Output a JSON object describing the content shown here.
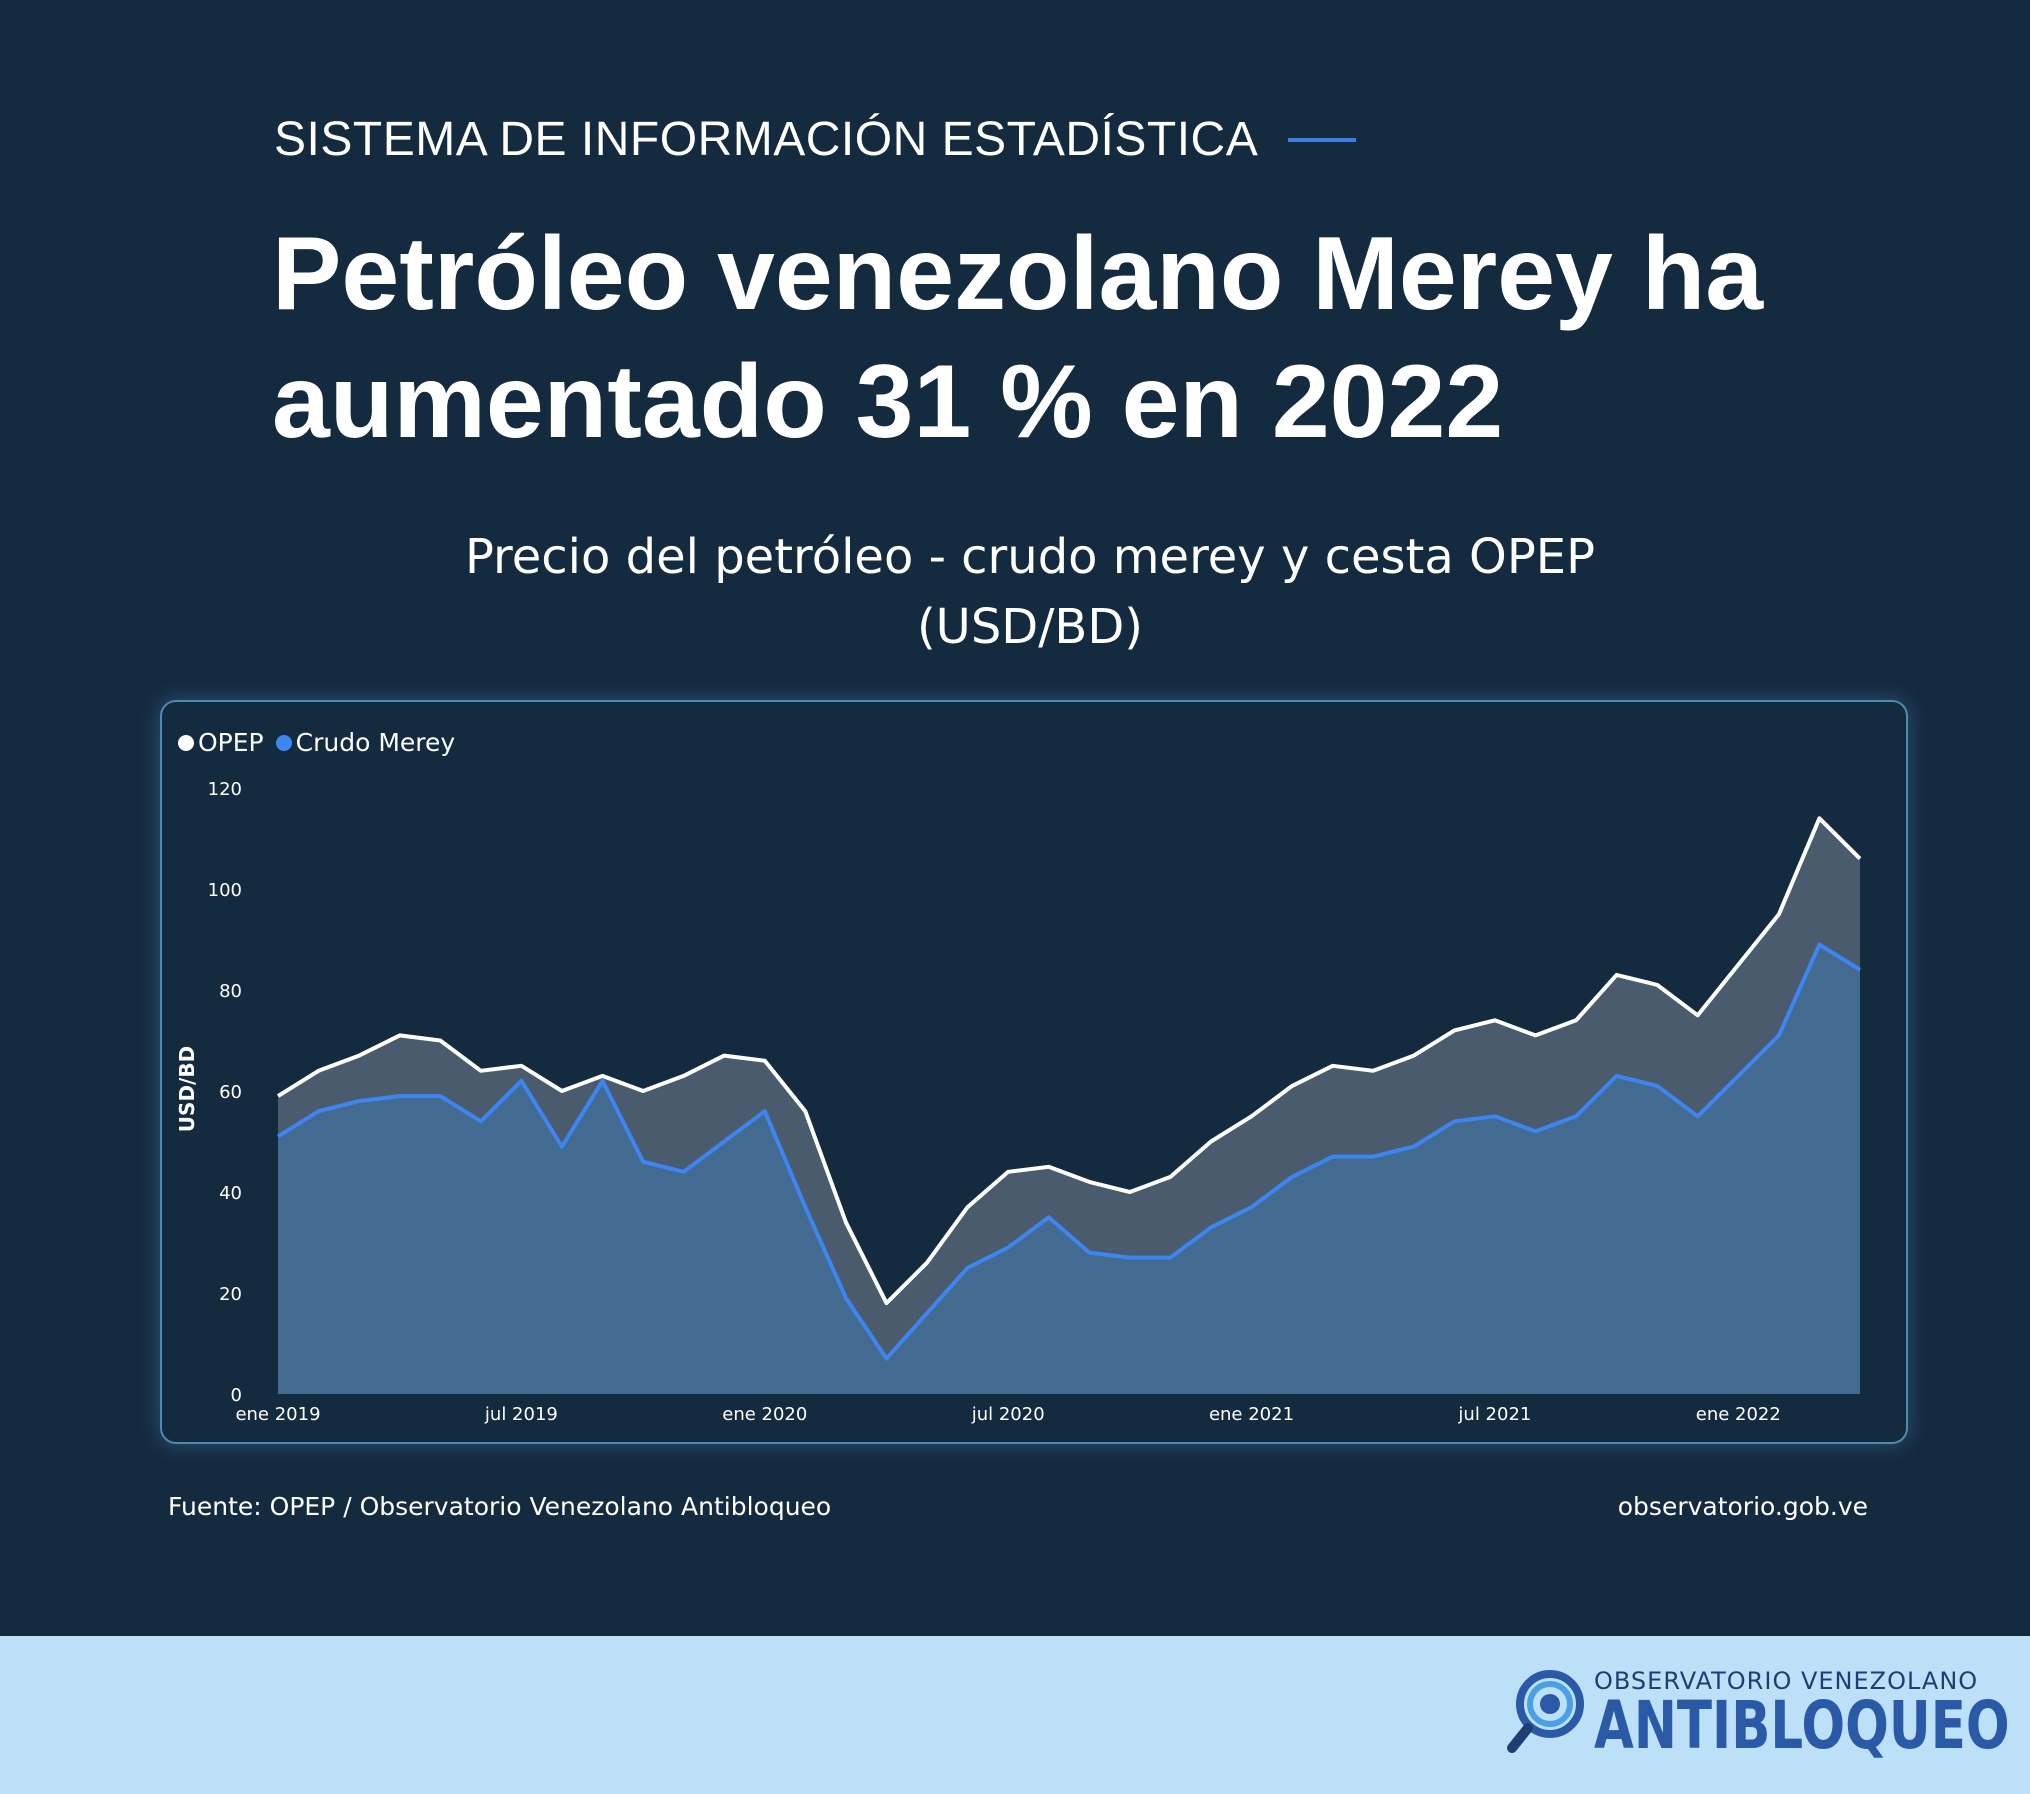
{
  "header": {
    "kicker": "SISTEMA DE INFORMACIÓN ESTADÍSTICA",
    "headline_line1": "Petróleo venezolano Merey ha",
    "headline_line2": "aumentado 31 % en 2022"
  },
  "chart_data": {
    "type": "area",
    "title": "Precio del petróleo - crudo merey y cesta OPEP",
    "subtitle": "(USD/BD)",
    "ylabel": "USD/BD",
    "xlabel": "",
    "ylim": [
      0,
      120
    ],
    "yticks": [
      0,
      20,
      40,
      60,
      80,
      100,
      120
    ],
    "xtick_labels": [
      {
        "index": 0,
        "label": "ene 2019"
      },
      {
        "index": 6,
        "label": "jul 2019"
      },
      {
        "index": 12,
        "label": "ene 2020"
      },
      {
        "index": 18,
        "label": "jul 2020"
      },
      {
        "index": 24,
        "label": "ene 2021"
      },
      {
        "index": 30,
        "label": "jul 2021"
      },
      {
        "index": 36,
        "label": "ene 2022"
      }
    ],
    "x": [
      "2019-01",
      "2019-02",
      "2019-03",
      "2019-04",
      "2019-05",
      "2019-06",
      "2019-07",
      "2019-08",
      "2019-09",
      "2019-10",
      "2019-11",
      "2019-12",
      "2020-01",
      "2020-02",
      "2020-03",
      "2020-04",
      "2020-05",
      "2020-06",
      "2020-07",
      "2020-08",
      "2020-09",
      "2020-10",
      "2020-11",
      "2020-12",
      "2021-01",
      "2021-02",
      "2021-03",
      "2021-04",
      "2021-05",
      "2021-06",
      "2021-07",
      "2021-08",
      "2021-09",
      "2021-10",
      "2021-11",
      "2021-12",
      "2022-01",
      "2022-02",
      "2022-03",
      "2022-04"
    ],
    "legend_position": "top-left",
    "grid": false,
    "series": [
      {
        "name": "OPEP",
        "color": "#ffffff",
        "values": [
          59,
          64,
          67,
          71,
          70,
          64,
          65,
          60,
          63,
          60,
          63,
          67,
          66,
          56,
          34,
          18,
          26,
          37,
          44,
          45,
          42,
          40,
          43,
          50,
          55,
          61,
          65,
          64,
          67,
          72,
          74,
          71,
          74,
          83,
          81,
          75,
          85,
          95,
          114,
          106
        ]
      },
      {
        "name": "Crudo Merey",
        "color": "#3d86f2",
        "values": [
          51,
          56,
          58,
          59,
          59,
          54,
          62,
          49,
          62,
          46,
          44,
          50,
          56,
          37,
          19,
          7,
          16,
          25,
          29,
          35,
          28,
          27,
          27,
          33,
          37,
          43,
          47,
          47,
          49,
          54,
          55,
          52,
          55,
          63,
          61,
          55,
          63,
          71,
          89,
          84
        ]
      }
    ]
  },
  "footer": {
    "source": "Fuente: OPEP / Observatorio Venezolano Antibloqueo",
    "url": "observatorio.gob.ve"
  },
  "logo": {
    "line1": "OBSERVATORIO VENEZOLANO",
    "line2": "ANTIBLOQUEO"
  }
}
